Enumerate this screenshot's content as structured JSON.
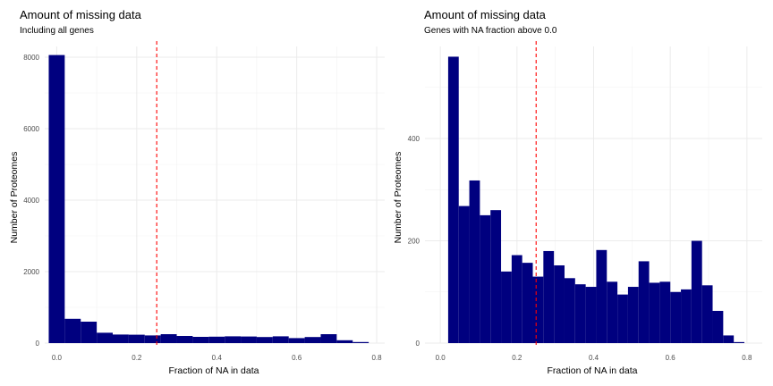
{
  "chart_data": [
    {
      "type": "bar",
      "title": "Amount of missing data",
      "subtitle": "Including all genes",
      "xlabel": "Fraction of NA in data",
      "ylabel": "Number of Proteomes",
      "xlim": [
        -0.03,
        0.82
      ],
      "ylim": [
        0,
        8300
      ],
      "xticks": [
        0.0,
        0.2,
        0.4,
        0.6,
        0.8
      ],
      "xtick_labels": [
        "0.0",
        "0.2",
        "0.4",
        "0.6",
        "0.8"
      ],
      "yticks": [
        0,
        2000,
        4000,
        6000,
        8000
      ],
      "ytick_labels": [
        "0",
        "2000",
        "4000",
        "6000",
        "8000"
      ],
      "bin_width": 0.04,
      "bin_centers": [
        0.0,
        0.04,
        0.08,
        0.12,
        0.16,
        0.2,
        0.24,
        0.28,
        0.32,
        0.36,
        0.4,
        0.44,
        0.48,
        0.52,
        0.56,
        0.6,
        0.64,
        0.68,
        0.72,
        0.76
      ],
      "values": [
        8060,
        680,
        600,
        290,
        240,
        235,
        215,
        250,
        200,
        175,
        180,
        190,
        185,
        170,
        190,
        140,
        170,
        250,
        80,
        30
      ],
      "reference_line_x": 0.25,
      "bar_color": "#00007F",
      "line_color": "#FF0000",
      "grid": true
    },
    {
      "type": "bar",
      "title": "Amount of missing data",
      "subtitle": "Genes with NA fraction above 0.0",
      "xlabel": "Fraction of NA in data",
      "ylabel": "Number of Proteomes",
      "xlim": [
        -0.04,
        0.84
      ],
      "ylim": [
        0,
        580
      ],
      "xticks": [
        0.0,
        0.2,
        0.4,
        0.6,
        0.8
      ],
      "xtick_labels": [
        "0.0",
        "0.2",
        "0.4",
        "0.6",
        "0.8"
      ],
      "yticks": [
        0,
        200,
        400
      ],
      "ytick_labels": [
        "0",
        "200",
        "400"
      ],
      "bin_width": 0.0276,
      "bin_centers": [
        0.0343,
        0.0619,
        0.0895,
        0.1171,
        0.1447,
        0.1723,
        0.1999,
        0.2275,
        0.2551,
        0.2827,
        0.3103,
        0.3379,
        0.3655,
        0.3931,
        0.4207,
        0.4483,
        0.4759,
        0.5035,
        0.5311,
        0.5587,
        0.5863,
        0.6139,
        0.6415,
        0.6691,
        0.6967,
        0.7243,
        0.7519,
        0.7795
      ],
      "values": [
        560,
        268,
        318,
        250,
        260,
        140,
        172,
        157,
        130,
        180,
        152,
        127,
        115,
        110,
        182,
        120,
        95,
        110,
        160,
        118,
        120,
        100,
        105,
        200,
        113,
        63,
        15,
        2
      ],
      "reference_line_x": 0.25,
      "bar_color": "#00007F",
      "line_color": "#FF0000",
      "grid": true
    }
  ]
}
